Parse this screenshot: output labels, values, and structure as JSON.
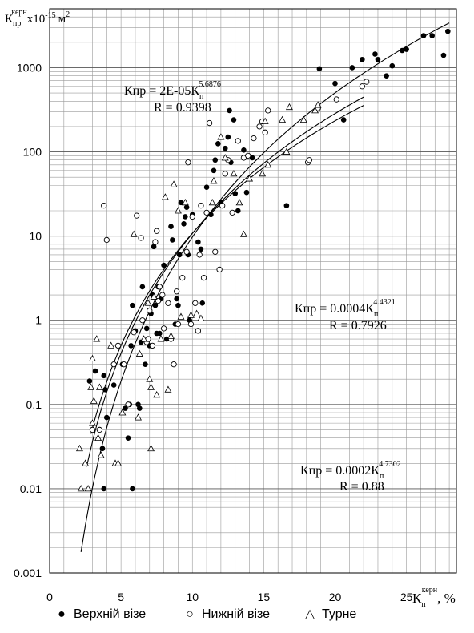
{
  "chart_data": {
    "type": "scatter",
    "xlabel": "Кп керн, %",
    "ylabel": "Кпр керн x10-15 м2",
    "x_ticks": [
      "0",
      "5",
      "10",
      "15",
      "20",
      "25"
    ],
    "y_ticks": [
      "0.001",
      "0.01",
      "0.1",
      "1",
      "10",
      "100",
      "1000"
    ],
    "xlim": [
      0,
      28.5
    ],
    "ylim": [
      0.001,
      5000
    ],
    "y_scale": "log",
    "grid": true,
    "series": [
      {
        "name": "Верхній візе",
        "marker": "filled-circle",
        "points": [
          [
            2.8,
            0.19
          ],
          [
            3.2,
            0.25
          ],
          [
            3.8,
            0.22
          ],
          [
            3.9,
            0.15
          ],
          [
            4.0,
            0.07
          ],
          [
            3.7,
            0.03
          ],
          [
            3.8,
            0.01
          ],
          [
            4.5,
            0.17
          ],
          [
            5.1,
            0.3
          ],
          [
            5.3,
            0.09
          ],
          [
            5.5,
            0.04
          ],
          [
            5.6,
            0.1
          ],
          [
            5.8,
            0.01
          ],
          [
            5.7,
            0.5
          ],
          [
            5.8,
            1.5
          ],
          [
            6.0,
            0.75
          ],
          [
            6.2,
            0.1
          ],
          [
            6.3,
            0.09
          ],
          [
            6.4,
            0.55
          ],
          [
            6.5,
            2.5
          ],
          [
            6.7,
            0.3
          ],
          [
            6.8,
            0.8
          ],
          [
            7.0,
            0.5
          ],
          [
            7.1,
            1.2
          ],
          [
            7.2,
            2.0
          ],
          [
            7.3,
            7.5
          ],
          [
            7.4,
            1.5
          ],
          [
            7.5,
            0.7
          ],
          [
            7.6,
            2.5
          ],
          [
            7.7,
            0.7
          ],
          [
            7.8,
            1.8
          ],
          [
            8.0,
            4.5
          ],
          [
            8.2,
            0.6
          ],
          [
            8.5,
            13
          ],
          [
            8.6,
            9
          ],
          [
            8.8,
            0.9
          ],
          [
            8.9,
            1.8
          ],
          [
            9.0,
            1.5
          ],
          [
            9.1,
            6
          ],
          [
            9.2,
            25
          ],
          [
            9.4,
            14
          ],
          [
            9.5,
            17
          ],
          [
            9.6,
            22
          ],
          [
            9.7,
            6
          ],
          [
            9.8,
            1.0
          ],
          [
            10.0,
            18
          ],
          [
            10.4,
            8.5
          ],
          [
            10.6,
            7
          ],
          [
            10.7,
            1.6
          ],
          [
            11.0,
            38
          ],
          [
            11.3,
            18
          ],
          [
            11.5,
            60
          ],
          [
            11.6,
            80
          ],
          [
            11.8,
            125
          ],
          [
            12.0,
            25
          ],
          [
            12.3,
            110
          ],
          [
            12.5,
            150
          ],
          [
            12.6,
            310
          ],
          [
            12.7,
            75
          ],
          [
            12.9,
            240
          ],
          [
            13.0,
            32
          ],
          [
            13.2,
            20
          ],
          [
            13.6,
            105
          ],
          [
            13.8,
            33
          ],
          [
            14.2,
            85
          ],
          [
            16.6,
            23
          ],
          [
            18.9,
            970
          ],
          [
            20.0,
            650
          ],
          [
            20.6,
            240
          ],
          [
            21.2,
            1000
          ],
          [
            21.9,
            1250
          ],
          [
            22.8,
            1450
          ],
          [
            23.0,
            1250
          ],
          [
            23.6,
            800
          ],
          [
            24.0,
            1050
          ],
          [
            24.7,
            1600
          ],
          [
            25.0,
            1650
          ],
          [
            26.2,
            2400
          ],
          [
            26.8,
            2400
          ],
          [
            27.6,
            1400
          ],
          [
            27.9,
            2700
          ]
        ]
      },
      {
        "name": "Нижній візе",
        "marker": "open-circle",
        "points": [
          [
            3.0,
            0.05
          ],
          [
            3.5,
            0.05
          ],
          [
            3.8,
            23
          ],
          [
            4.0,
            9
          ],
          [
            4.5,
            0.3
          ],
          [
            4.8,
            0.5
          ],
          [
            5.2,
            0.3
          ],
          [
            5.5,
            0.1
          ],
          [
            5.9,
            0.72
          ],
          [
            6.1,
            17.5
          ],
          [
            6.4,
            9.5
          ],
          [
            6.5,
            1.0
          ],
          [
            6.8,
            0.55
          ],
          [
            6.9,
            0.6
          ],
          [
            7.0,
            1.3
          ],
          [
            7.2,
            0.5
          ],
          [
            7.4,
            8.5
          ],
          [
            7.5,
            11.5
          ],
          [
            7.6,
            1.7
          ],
          [
            7.7,
            2.5
          ],
          [
            7.9,
            2.0
          ],
          [
            8.0,
            0.8
          ],
          [
            8.3,
            1.6
          ],
          [
            8.5,
            0.6
          ],
          [
            8.7,
            0.3
          ],
          [
            8.9,
            2.2
          ],
          [
            9.0,
            0.9
          ],
          [
            9.3,
            3.2
          ],
          [
            9.6,
            6.5
          ],
          [
            9.7,
            75
          ],
          [
            9.9,
            0.9
          ],
          [
            10.0,
            17
          ],
          [
            10.2,
            1.6
          ],
          [
            10.4,
            0.75
          ],
          [
            10.5,
            6
          ],
          [
            10.6,
            23
          ],
          [
            10.8,
            3.2
          ],
          [
            11.0,
            19
          ],
          [
            11.2,
            220
          ],
          [
            11.6,
            6.5
          ],
          [
            11.9,
            4.0
          ],
          [
            12.1,
            23
          ],
          [
            12.3,
            55
          ],
          [
            12.5,
            80
          ],
          [
            12.8,
            19
          ],
          [
            13.2,
            135
          ],
          [
            13.6,
            85
          ],
          [
            13.9,
            90
          ],
          [
            14.3,
            145
          ],
          [
            14.7,
            200
          ],
          [
            14.9,
            230
          ],
          [
            15.1,
            170
          ],
          [
            15.3,
            310
          ],
          [
            18.1,
            75
          ],
          [
            18.2,
            80
          ],
          [
            18.8,
            330
          ],
          [
            20.1,
            420
          ],
          [
            21.9,
            600
          ],
          [
            22.2,
            680
          ]
        ]
      },
      {
        "name": "Турне",
        "marker": "open-triangle",
        "points": [
          [
            2.1,
            0.03
          ],
          [
            2.2,
            0.01
          ],
          [
            2.5,
            0.02
          ],
          [
            2.7,
            0.01
          ],
          [
            2.9,
            0.16
          ],
          [
            3.0,
            0.06
          ],
          [
            3.0,
            0.35
          ],
          [
            3.1,
            0.11
          ],
          [
            3.3,
            0.6
          ],
          [
            3.4,
            0.04
          ],
          [
            3.5,
            0.16
          ],
          [
            3.6,
            0.025
          ],
          [
            4.3,
            0.5
          ],
          [
            4.6,
            0.02
          ],
          [
            4.8,
            0.02
          ],
          [
            5.1,
            0.08
          ],
          [
            5.9,
            10.5
          ],
          [
            6.2,
            0.07
          ],
          [
            6.3,
            0.4
          ],
          [
            6.6,
            0.6
          ],
          [
            6.9,
            1.6
          ],
          [
            7.0,
            0.2
          ],
          [
            7.1,
            0.16
          ],
          [
            7.1,
            0.03
          ],
          [
            7.3,
            1.9
          ],
          [
            7.5,
            0.13
          ],
          [
            7.8,
            0.6
          ],
          [
            8.1,
            29
          ],
          [
            8.3,
            0.15
          ],
          [
            8.5,
            0.65
          ],
          [
            8.7,
            41
          ],
          [
            9.0,
            20
          ],
          [
            9.2,
            1.1
          ],
          [
            9.5,
            25
          ],
          [
            9.9,
            1.15
          ],
          [
            10.3,
            1.2
          ],
          [
            10.6,
            1.05
          ],
          [
            11.4,
            25
          ],
          [
            11.5,
            45
          ],
          [
            12.0,
            150
          ],
          [
            12.3,
            85
          ],
          [
            12.9,
            55
          ],
          [
            13.3,
            25
          ],
          [
            13.6,
            10.5
          ],
          [
            14.0,
            48
          ],
          [
            14.9,
            55
          ],
          [
            15.1,
            230
          ],
          [
            15.3,
            70
          ],
          [
            16.3,
            240
          ],
          [
            16.6,
            100
          ],
          [
            16.8,
            340
          ],
          [
            17.8,
            240
          ],
          [
            18.6,
            310
          ],
          [
            18.8,
            360
          ]
        ]
      }
    ],
    "trendlines": [
      {
        "label": "Кпр = 2E-05Кп5.6876",
        "coef": 2e-05,
        "exp": 5.6876,
        "x_range": [
          2.2,
          28.0
        ],
        "r": "R = 0.9398"
      },
      {
        "label": "Кпр = 0.0004Кп4.4321",
        "coef": 0.0004,
        "exp": 4.4321,
        "x_range": [
          2.9,
          22.0
        ],
        "r": "R = 0.7926"
      },
      {
        "label": "Кпр = 0.0002Кп4.7302",
        "coef": 0.0002,
        "exp": 4.7302,
        "x_range": [
          2.6,
          22.0
        ],
        "r": "R = 0.88"
      }
    ]
  },
  "annotations": {
    "eq1_main": "Кпр = 2E-05К",
    "eq1_sub": "п",
    "eq1_sup": "5.6876",
    "eq1_r": "R = 0.9398",
    "eq2_main": "Кпр = 0.0004К",
    "eq2_sub": "п",
    "eq2_sup": "4.4321",
    "eq2_r": "R = 0.7926",
    "eq3_main": "Кпр = 0.0002К",
    "eq3_sub": "п",
    "eq3_sup": "4.7302",
    "eq3_r": "R = 0.88"
  },
  "axis_titles": {
    "y_main": "К",
    "y_sub": "пр",
    "y_sup": "керн",
    "y_rest": "x10",
    "y_exp": "-15",
    "y_unit": "м",
    "y_unit_exp": "2",
    "x_main": "К",
    "x_sub": "п",
    "x_sup": "керн",
    "x_unit": ", %"
  },
  "legend": {
    "items": [
      "Верхній візе",
      "Нижній візе",
      "Турне"
    ],
    "symbols": [
      "●",
      "○",
      "△"
    ]
  }
}
